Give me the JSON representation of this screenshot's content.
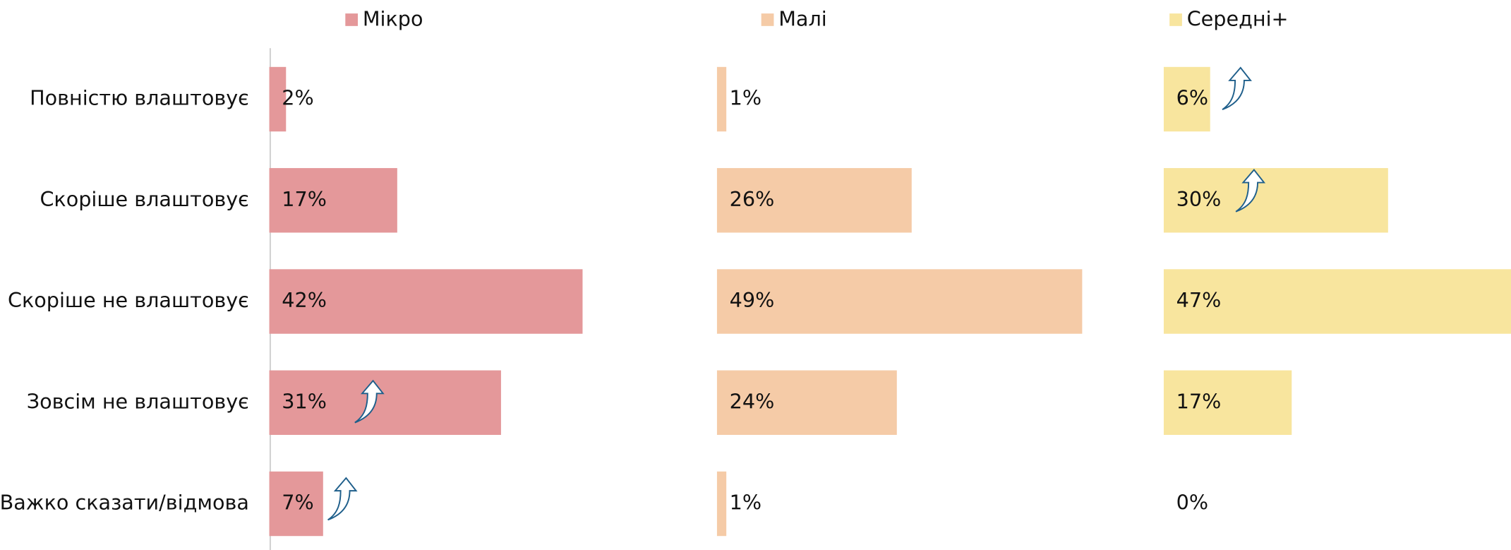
{
  "chart_data": {
    "type": "bar",
    "orientation": "horizontal",
    "layout": "panels",
    "categories": [
      "Повністю влаштовує",
      "Скоріше влаштовує",
      "Скоріше не влаштовує",
      "Зовсім не влаштовує",
      "Важко сказати/відмова"
    ],
    "xlim": [
      0,
      60
    ],
    "series": [
      {
        "name": "Мікро",
        "color": "#e4989a",
        "values": [
          2,
          17,
          42,
          31,
          7
        ],
        "value_labels": [
          "2%",
          "17%",
          "42%",
          "31%",
          "7%"
        ]
      },
      {
        "name": "Малі",
        "color": "#f5cba7",
        "values": [
          1,
          26,
          49,
          24,
          1
        ],
        "value_labels": [
          "1%",
          "26%",
          "49%",
          "24%",
          "1%"
        ]
      },
      {
        "name": "Середні+",
        "color": "#f8e59e",
        "values": [
          6,
          30,
          47,
          17,
          0
        ],
        "value_labels": [
          "6%",
          "30%",
          "47%",
          "17%",
          "0%"
        ]
      }
    ]
  }
}
